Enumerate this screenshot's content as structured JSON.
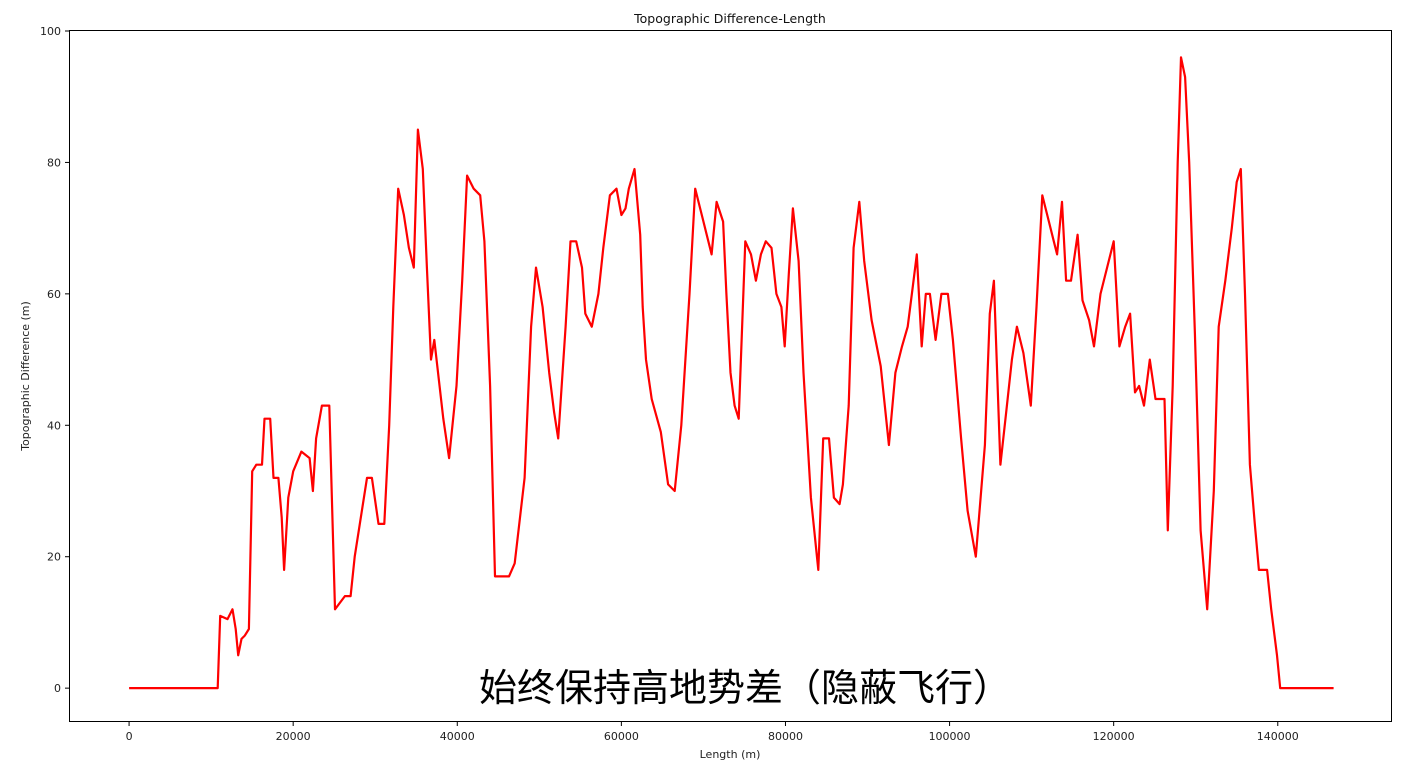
{
  "chart_data": {
    "type": "line",
    "title": "Topographic Difference-Length",
    "xlabel": "Length (m)",
    "ylabel": "Topographic Difference (m)",
    "xlim": [
      -7200,
      153800
    ],
    "ylim": [
      -5,
      100
    ],
    "x_ticks": [
      0,
      20000,
      40000,
      60000,
      80000,
      100000,
      120000,
      140000
    ],
    "x_tick_labels": [
      "0",
      "20000",
      "40000",
      "60000",
      "80000",
      "100000",
      "120000",
      "140000"
    ],
    "y_ticks": [
      0,
      20,
      40,
      60,
      80,
      100
    ],
    "y_tick_labels": [
      "0",
      "20",
      "40",
      "60",
      "80",
      "100"
    ],
    "grid": false,
    "series": [
      {
        "color": "#ff0000",
        "x": [
          0,
          10800,
          11100,
          12000,
          12600,
          13000,
          13300,
          13700,
          14100,
          14600,
          15000,
          15500,
          16200,
          16500,
          17200,
          17600,
          18200,
          18600,
          18900,
          19400,
          20000,
          21000,
          22000,
          22400,
          22800,
          23500,
          24400,
          24800,
          25100,
          26300,
          27000,
          27500,
          29000,
          29600,
          30400,
          31100,
          31700,
          32200,
          32800,
          33500,
          34100,
          34700,
          35200,
          35800,
          36300,
          36800,
          37200,
          38300,
          39000,
          39900,
          40600,
          41200,
          42000,
          42800,
          43300,
          44000,
          44600,
          46300,
          47000,
          48200,
          49000,
          49600,
          50400,
          51200,
          51800,
          52300,
          53200,
          53800,
          54500,
          55200,
          55600,
          56400,
          57200,
          57800,
          58600,
          59400,
          60000,
          60500,
          60900,
          61600,
          62300,
          62600,
          63000,
          63700,
          64800,
          65700,
          66500,
          67300,
          68300,
          69000,
          69800,
          70400,
          71000,
          71600,
          72400,
          72800,
          73300,
          73800,
          74300,
          75100,
          75800,
          76400,
          77000,
          77600,
          78300,
          78900,
          79500,
          79900,
          80400,
          80900,
          81600,
          82200,
          83100,
          84000,
          84600,
          85300,
          85900,
          86600,
          87000,
          87700,
          88300,
          89000,
          89600,
          90500,
          91600,
          92600,
          93400,
          94200,
          94900,
          95500,
          96000,
          96600,
          97100,
          97600,
          98300,
          99000,
          99800,
          100400,
          101400,
          102200,
          103200,
          104300,
          104900,
          105400,
          106200,
          106900,
          107600,
          108200,
          109000,
          109900,
          110600,
          111300,
          112100,
          112700,
          113100,
          113700,
          114200,
          114800,
          115600,
          116200,
          117000,
          117600,
          118400,
          119200,
          120000,
          120700,
          121400,
          122000,
          122600,
          123100,
          123700,
          124400,
          125100,
          126200,
          126600,
          127200,
          127800,
          128200,
          128700,
          129200,
          129900,
          130600,
          131400,
          132200,
          132800,
          133600,
          134400,
          135000,
          135500,
          136000,
          136600,
          137200,
          137700,
          138700,
          139200,
          139900,
          140300,
          140500,
          146800
        ],
        "y": [
          0,
          0,
          11,
          10.5,
          12,
          9,
          5,
          7.5,
          8,
          9,
          33,
          34,
          34,
          41,
          41,
          32,
          32,
          26,
          18,
          29,
          33,
          36,
          35,
          30,
          38,
          43,
          43,
          25,
          12,
          14,
          14,
          20,
          32,
          32,
          25,
          25,
          40,
          58,
          76,
          72,
          67,
          64,
          85,
          79,
          64,
          50,
          53,
          41,
          35,
          46,
          62,
          78,
          76,
          75,
          68,
          46,
          17,
          17,
          19,
          32,
          55,
          64,
          58,
          48,
          42,
          38,
          55,
          68,
          68,
          64,
          57,
          55,
          60,
          67,
          75,
          76,
          72,
          73,
          76,
          79,
          69,
          58,
          50,
          44,
          39,
          31,
          30,
          40,
          60,
          76,
          72,
          69,
          66,
          74,
          71,
          60,
          48,
          43,
          41,
          68,
          66,
          62,
          66,
          68,
          67,
          60,
          58,
          52,
          63,
          73,
          65,
          48,
          29,
          18,
          38,
          38,
          29,
          28,
          31,
          43,
          67,
          74,
          65,
          56,
          49,
          37,
          48,
          52,
          55,
          61,
          66,
          52,
          60,
          60,
          53,
          60,
          60,
          53,
          38,
          27,
          20,
          37,
          57,
          62,
          34,
          42,
          50,
          55,
          51,
          43,
          58,
          75,
          71,
          68,
          66,
          74,
          62,
          62,
          69,
          59,
          56,
          52,
          60,
          64,
          68,
          52,
          55,
          57,
          45,
          46,
          43,
          50,
          44,
          44,
          24,
          46,
          80,
          96,
          93,
          80,
          54,
          24,
          12,
          30,
          55,
          62,
          70,
          77,
          79,
          60,
          34,
          25,
          18,
          18,
          12,
          5,
          0,
          0,
          0
        ]
      }
    ]
  },
  "caption": "始终保持高地势差（隐蔽飞行）"
}
